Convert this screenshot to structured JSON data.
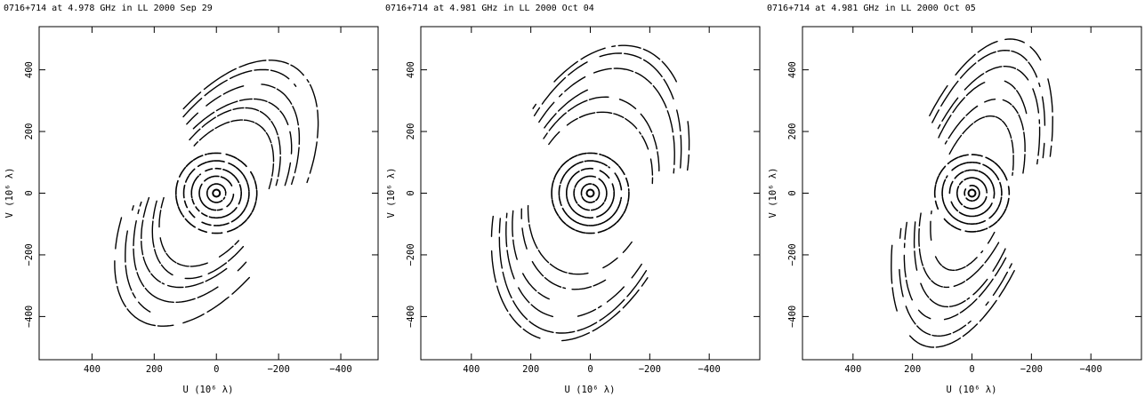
{
  "chart_data": [
    {
      "type": "scatter",
      "title": "0716+714 at 4.978 GHz in LL  2000 Sep 29",
      "xlabel": "U (10⁶ λ)",
      "ylabel": "V (10⁶ λ)",
      "xlim": [
        570,
        -520
      ],
      "ylim": [
        -540,
        540
      ],
      "xticks": [
        400,
        200,
        0,
        -200,
        -400
      ],
      "yticks": [
        400,
        200,
        0,
        -200,
        -400
      ],
      "xtick_labels": [
        "400",
        "200",
        "0",
        "−200",
        "−400"
      ],
      "ytick_labels": [
        "400",
        "200",
        "0",
        "−200",
        "−400"
      ],
      "grid": false,
      "series": [
        {
          "tracks": [
            {
              "rx": 30,
              "ry": 30,
              "rot": 0,
              "off": [
                0,
                0
              ]
            },
            {
              "rx": 55,
              "ry": 55,
              "rot": 0,
              "off": [
                0,
                0
              ]
            },
            {
              "rx": 80,
              "ry": 80,
              "rot": 0,
              "off": [
                0,
                0
              ]
            },
            {
              "rx": 105,
              "ry": 105,
              "rot": 0,
              "off": [
                0,
                0
              ]
            },
            {
              "rx": 130,
              "ry": 130,
              "rot": 0,
              "off": [
                0,
                0
              ]
            },
            {
              "rx": 260,
              "ry": 150,
              "rot": -60,
              "off": [
                0,
                0
              ]
            },
            {
              "rx": 300,
              "ry": 170,
              "rot": -62,
              "off": [
                0,
                0
              ]
            },
            {
              "rx": 340,
              "ry": 190,
              "rot": -58,
              "off": [
                0,
                0
              ]
            },
            {
              "rx": 390,
              "ry": 210,
              "rot": -60,
              "off": [
                0,
                0
              ]
            },
            {
              "rx": 440,
              "ry": 230,
              "rot": -61,
              "off": [
                0,
                0
              ]
            },
            {
              "rx": 480,
              "ry": 250,
              "rot": -59,
              "off": [
                0,
                0
              ]
            }
          ]
        }
      ]
    },
    {
      "type": "scatter",
      "title": "0716+714 at 4.981 GHz in LL  2000 Oct 04",
      "xlabel": "U (10⁶ λ)",
      "ylabel": "V (10⁶ λ)",
      "xlim": [
        570,
        -570
      ],
      "ylim": [
        -540,
        540
      ],
      "xticks": [
        400,
        200,
        0,
        -200,
        -400
      ],
      "yticks": [
        400,
        200,
        0,
        -200,
        -400
      ],
      "xtick_labels": [
        "400",
        "200",
        "0",
        "−200",
        "−400"
      ],
      "ytick_labels": [
        "400",
        "200",
        "0",
        "−200",
        "−400"
      ],
      "grid": false,
      "series": [
        {
          "tracks": [
            {
              "rx": 30,
              "ry": 30,
              "rot": 0,
              "off": [
                0,
                0
              ]
            },
            {
              "rx": 55,
              "ry": 55,
              "rot": 0,
              "off": [
                0,
                0
              ]
            },
            {
              "rx": 80,
              "ry": 80,
              "rot": 0,
              "off": [
                0,
                0
              ]
            },
            {
              "rx": 105,
              "ry": 105,
              "rot": 0,
              "off": [
                0,
                0
              ]
            },
            {
              "rx": 130,
              "ry": 130,
              "rot": 0,
              "off": [
                0,
                0
              ]
            },
            {
              "rx": 270,
              "ry": 200,
              "rot": -70,
              "off": [
                0,
                0
              ]
            },
            {
              "rx": 320,
              "ry": 220,
              "rot": -72,
              "off": [
                0,
                0
              ]
            },
            {
              "rx": 370,
              "ry": 240,
              "rot": -68,
              "off": [
                0,
                0
              ]
            },
            {
              "rx": 420,
              "ry": 260,
              "rot": -70,
              "off": [
                0,
                0
              ]
            },
            {
              "rx": 470,
              "ry": 280,
              "rot": -71,
              "off": [
                0,
                0
              ]
            },
            {
              "rx": 500,
              "ry": 300,
              "rot": -69,
              "off": [
                0,
                0
              ]
            }
          ]
        }
      ]
    },
    {
      "type": "scatter",
      "title": "0716+714 at 4.981 GHz in LL  2000 Oct 05",
      "xlabel": "U (10⁶ λ)",
      "ylabel": "V (10⁶ λ)",
      "xlim": [
        570,
        -570
      ],
      "ylim": [
        -540,
        540
      ],
      "xticks": [
        400,
        200,
        0,
        -200,
        -400
      ],
      "yticks": [
        400,
        200,
        0,
        -200,
        -400
      ],
      "xtick_labels": [
        "400",
        "200",
        "0",
        "−200",
        "−400"
      ],
      "ytick_labels": [
        "400",
        "200",
        "0",
        "−200",
        "−400"
      ],
      "grid": false,
      "series": [
        {
          "tracks": [
            {
              "rx": 25,
              "ry": 25,
              "rot": 0,
              "off": [
                0,
                0
              ]
            },
            {
              "rx": 50,
              "ry": 50,
              "rot": 0,
              "off": [
                0,
                0
              ]
            },
            {
              "rx": 75,
              "ry": 75,
              "rot": 0,
              "off": [
                0,
                0
              ]
            },
            {
              "rx": 100,
              "ry": 100,
              "rot": 0,
              "off": [
                0,
                0
              ]
            },
            {
              "rx": 125,
              "ry": 125,
              "rot": 0,
              "off": [
                0,
                0
              ]
            },
            {
              "rx": 260,
              "ry": 120,
              "rot": -72,
              "off": [
                0,
                0
              ]
            },
            {
              "rx": 320,
              "ry": 150,
              "rot": -70,
              "off": [
                0,
                0
              ]
            },
            {
              "rx": 380,
              "ry": 170,
              "rot": -74,
              "off": [
                0,
                0
              ]
            },
            {
              "rx": 430,
              "ry": 190,
              "rot": -71,
              "off": [
                0,
                0
              ]
            },
            {
              "rx": 480,
              "ry": 210,
              "rot": -73,
              "off": [
                0,
                0
              ]
            },
            {
              "rx": 520,
              "ry": 230,
              "rot": -72,
              "off": [
                0,
                0
              ]
            }
          ]
        }
      ]
    }
  ]
}
